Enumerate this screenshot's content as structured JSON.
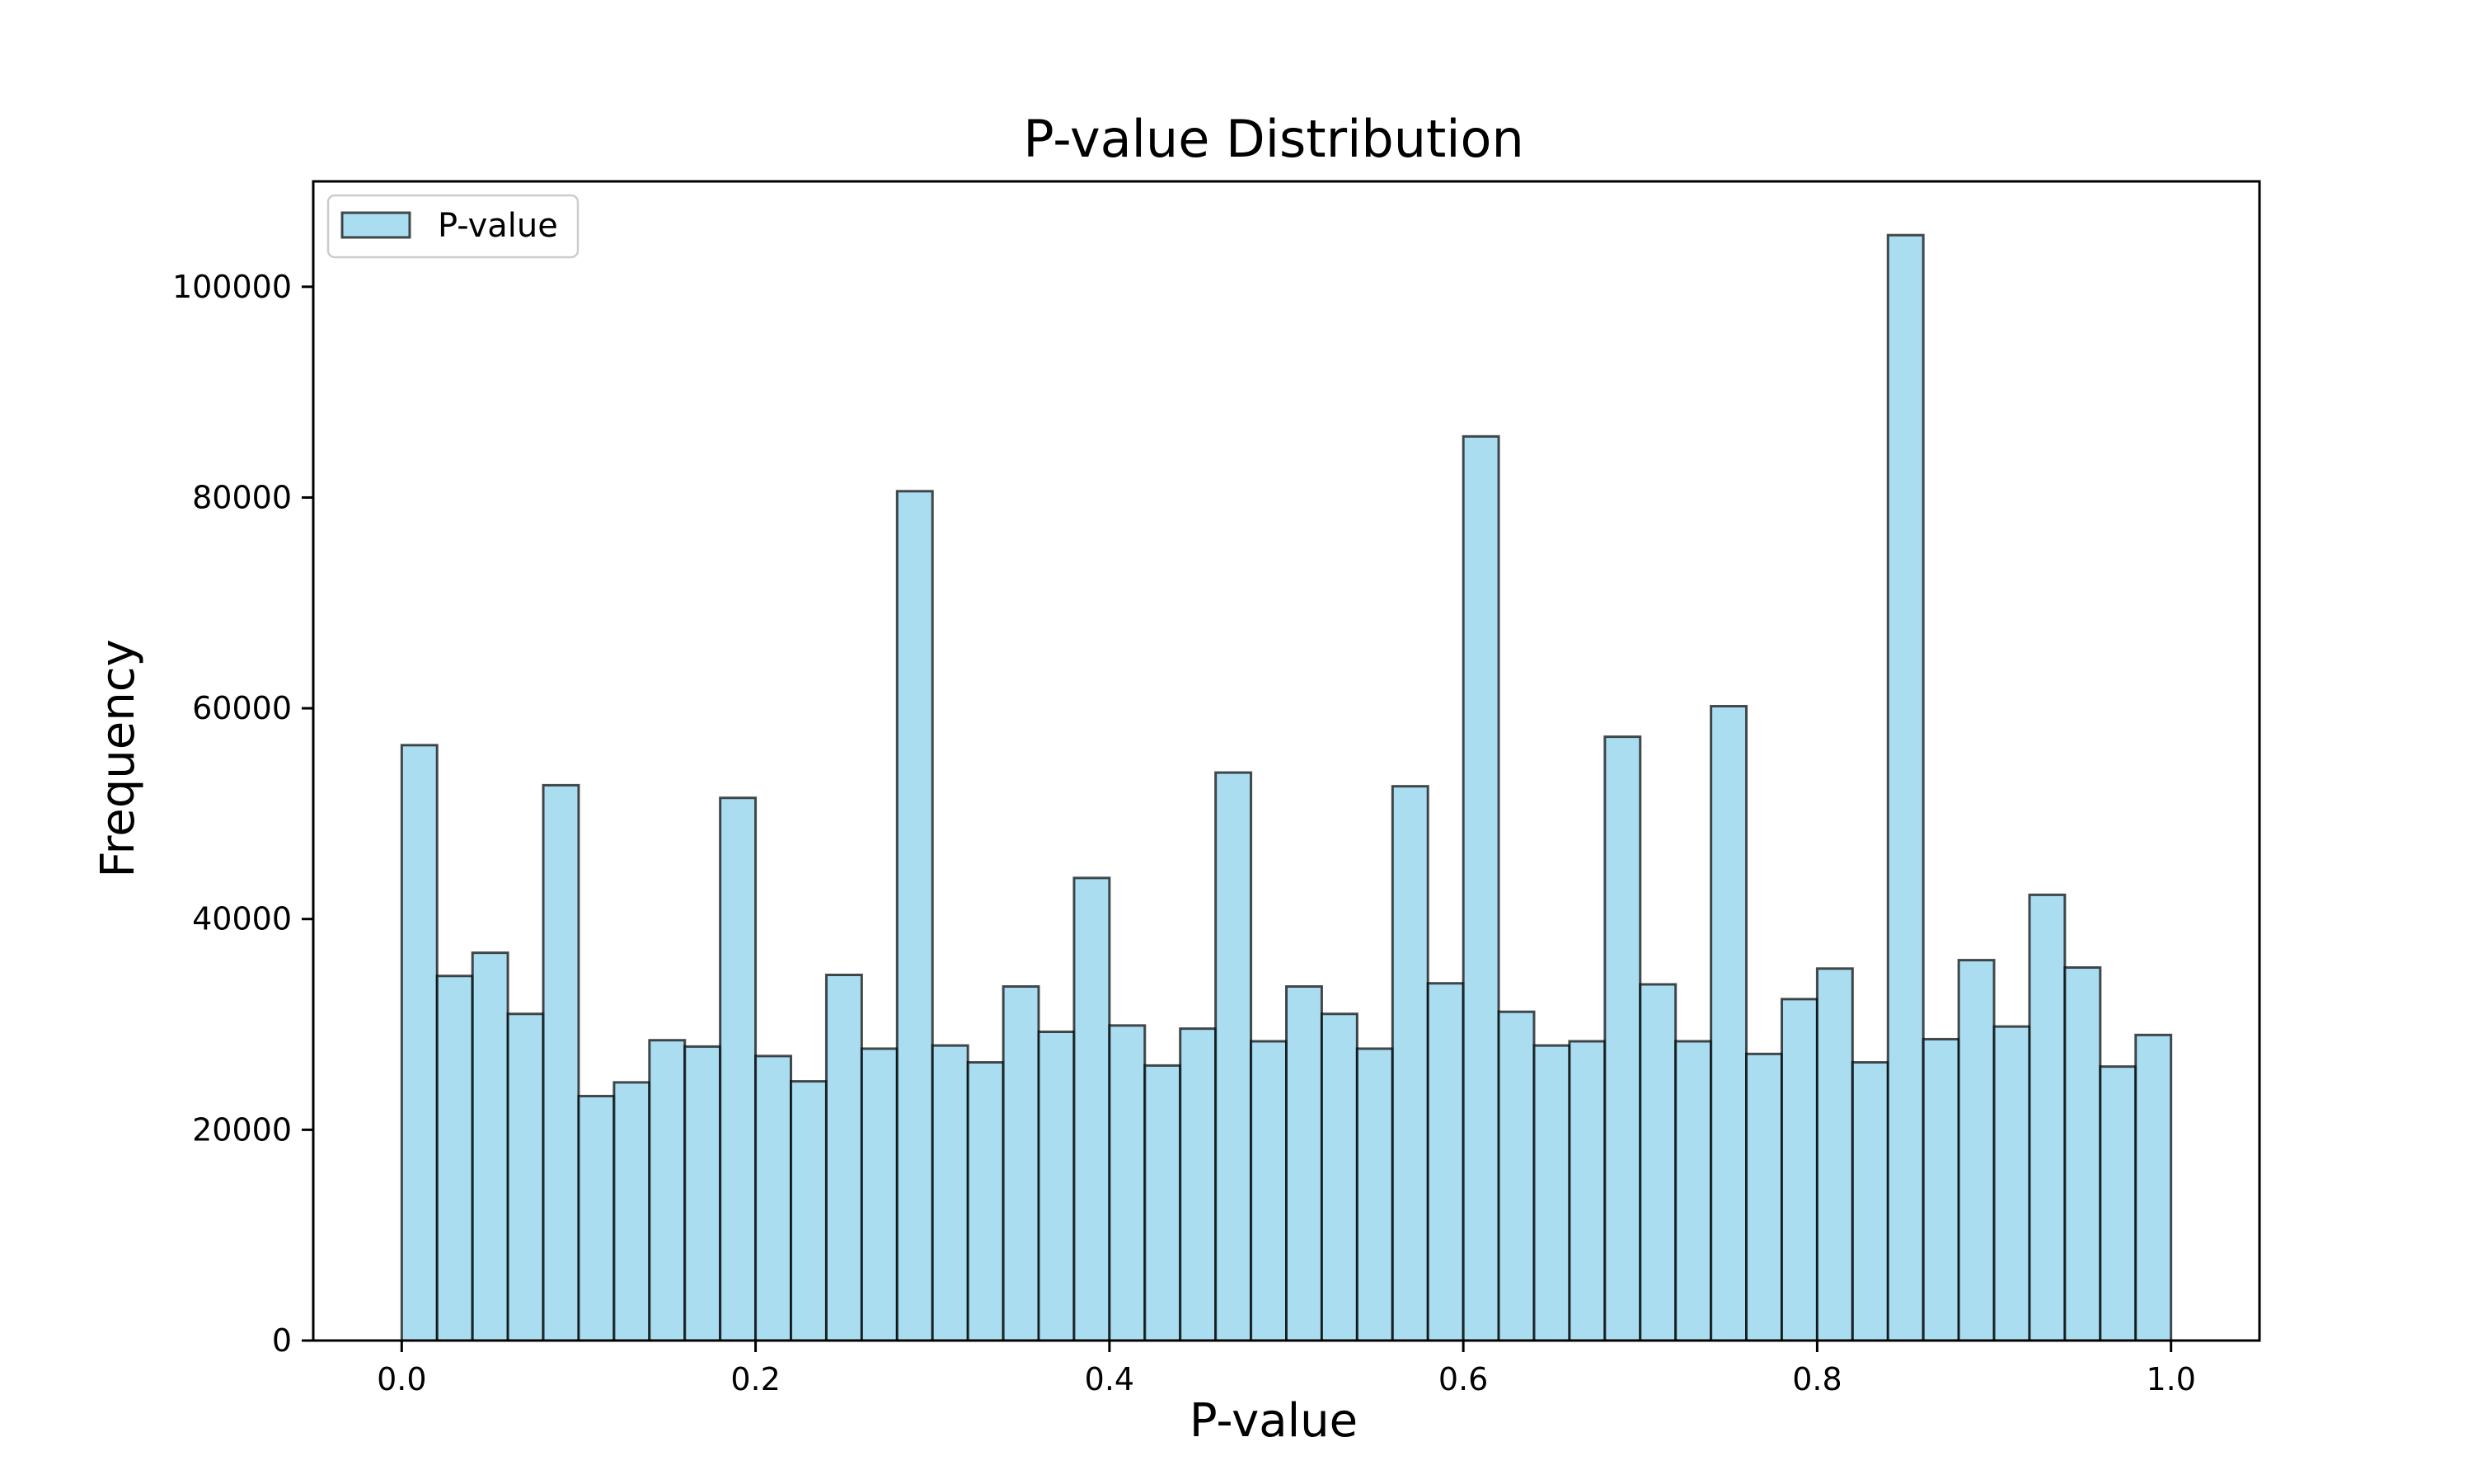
{
  "chart_data": {
    "type": "bar",
    "title": "P-value Distribution",
    "xlabel": "P-value",
    "ylabel": "Frequency",
    "xlim": [
      -0.05,
      1.05
    ],
    "ylim": [
      0,
      110000
    ],
    "bin_range": [
      0.0,
      1.0
    ],
    "bin_count": 50,
    "x_ticks": [
      {
        "value": 0.0,
        "label": "0.0"
      },
      {
        "value": 0.2,
        "label": "0.2"
      },
      {
        "value": 0.4,
        "label": "0.4"
      },
      {
        "value": 0.6,
        "label": "0.6"
      },
      {
        "value": 0.8,
        "label": "0.8"
      },
      {
        "value": 1.0,
        "label": "1.0"
      }
    ],
    "y_ticks": [
      {
        "value": 0,
        "label": "0"
      },
      {
        "value": 20000,
        "label": "20000"
      },
      {
        "value": 40000,
        "label": "40000"
      },
      {
        "value": 60000,
        "label": "60000"
      },
      {
        "value": 80000,
        "label": "80000"
      },
      {
        "value": 100000,
        "label": "100000"
      }
    ],
    "grid": false,
    "legend": {
      "placement": "upper-left",
      "entries": [
        "P-value"
      ]
    },
    "series": [
      {
        "name": "P-value",
        "color": "#87CEEB",
        "edge_color": "#000000",
        "values": [
          56500,
          34600,
          36800,
          31000,
          52700,
          23200,
          24500,
          28500,
          27900,
          51500,
          27000,
          24600,
          34700,
          27700,
          80600,
          28000,
          26400,
          33600,
          29300,
          43900,
          29900,
          26100,
          29600,
          53900,
          28400,
          33600,
          31000,
          27700,
          52600,
          33900,
          85800,
          31200,
          28000,
          28400,
          57300,
          33800,
          28400,
          60200,
          27200,
          32400,
          35300,
          26400,
          104900,
          28600,
          36100,
          29800,
          42300,
          35400,
          26000,
          29000
        ]
      }
    ]
  }
}
